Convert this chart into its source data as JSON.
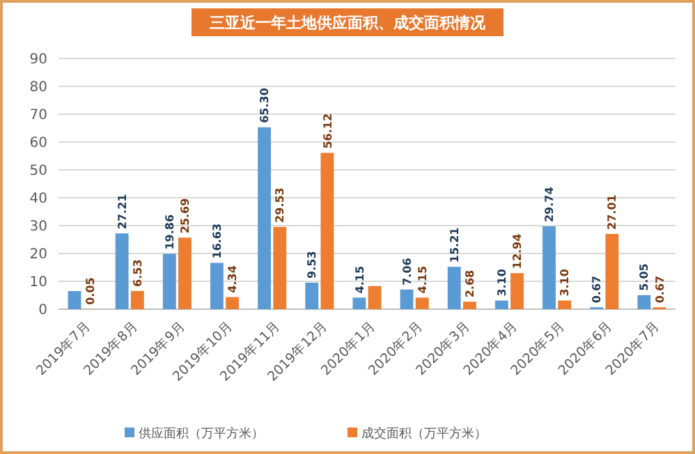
{
  "chart_data": {
    "type": "bar",
    "title": "三亚近一年土地供应面积、成交面积情况",
    "categories": [
      "2019年7月",
      "2019年8月",
      "2019年9月",
      "2019年10月",
      "2019年11月",
      "2019年12月",
      "2020年1月",
      "2020年2月",
      "2020年3月",
      "2020年4月",
      "2020年5月",
      "2020年6月",
      "2020年7月"
    ],
    "series": [
      {
        "name": "供应面积（万平方米）",
        "color": "#5b9bd5",
        "values": [
          6.5,
          27.21,
          19.86,
          16.63,
          65.3,
          9.53,
          4.15,
          7.06,
          15.21,
          3.1,
          29.74,
          0.67,
          5.05
        ],
        "value_labels": [
          null,
          "27.21",
          "19.86",
          "16.63",
          "65.30",
          "9.53",
          "4.15",
          "7.06",
          "15.21",
          "3.10",
          "29.74",
          "0.67",
          "5.05"
        ]
      },
      {
        "name": "成交面积（万平方米）",
        "color": "#ed7d31",
        "values": [
          0.05,
          6.53,
          25.69,
          4.34,
          29.53,
          56.12,
          8.3,
          4.15,
          2.68,
          12.94,
          3.1,
          27.01,
          0.67
        ],
        "value_labels": [
          "0.05",
          "6.53",
          "25.69",
          "4.34",
          "29.53",
          "56.12",
          null,
          "4.15",
          "2.68",
          "12.94",
          "3.10",
          "27.01",
          "0.67"
        ]
      }
    ],
    "ylim": [
      0,
      90
    ],
    "yticks": [
      0,
      10,
      20,
      30,
      40,
      50,
      60,
      70,
      80,
      90
    ],
    "grid": "y",
    "legend": "bottom"
  }
}
